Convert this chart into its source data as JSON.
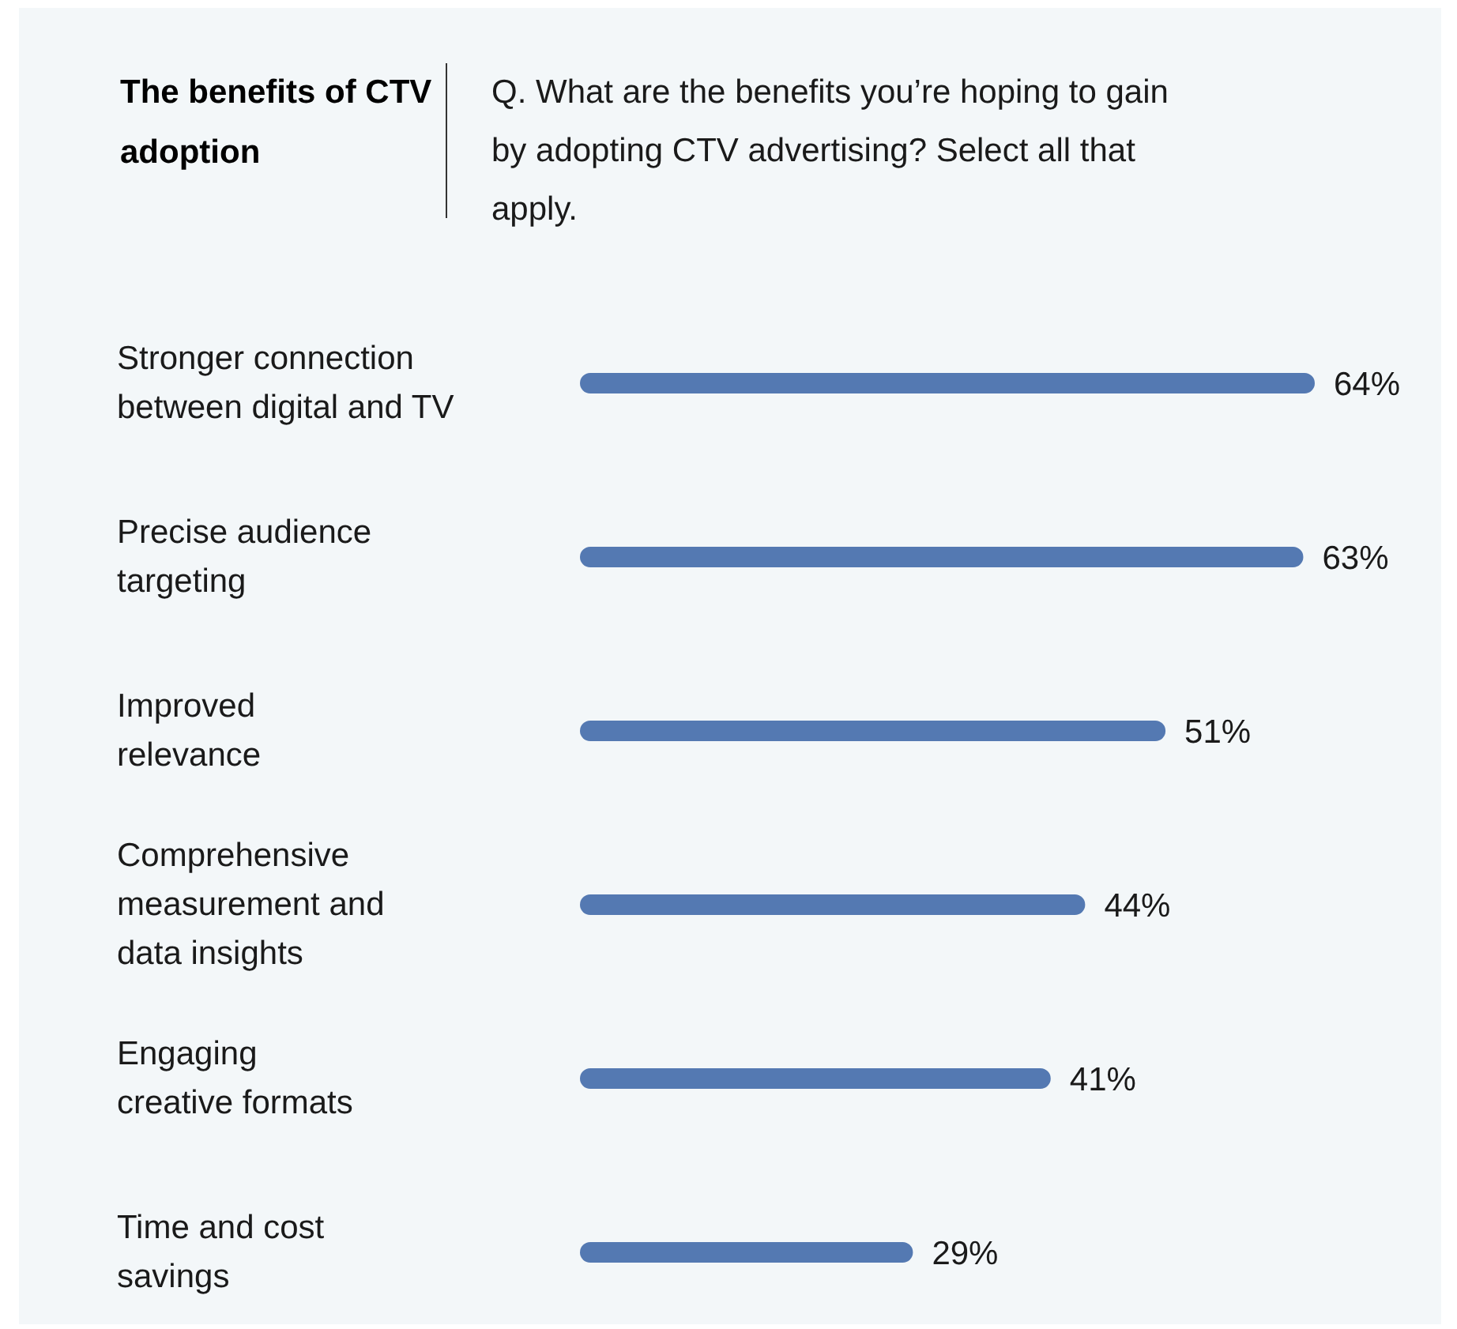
{
  "chart_data": {
    "type": "bar",
    "orientation": "horizontal",
    "title": "The benefits of CTV adoption",
    "subtitle": "Q. What are the benefits you’re hoping to gain by adopting CTV advertising? Select all that apply.",
    "categories": [
      "Stronger connection\nbetween digital and TV",
      "Precise audience\ntargeting",
      "Improved\nrelevance",
      "Comprehensive\nmeasurement and\ndata insights",
      "Engaging\ncreative formats",
      "Time and cost\nsavings"
    ],
    "values": [
      64,
      63,
      51,
      44,
      41,
      29
    ],
    "value_labels": [
      "64%",
      "63%",
      "51%",
      "44%",
      "41%",
      "29%"
    ],
    "color": "#5479b2"
  }
}
